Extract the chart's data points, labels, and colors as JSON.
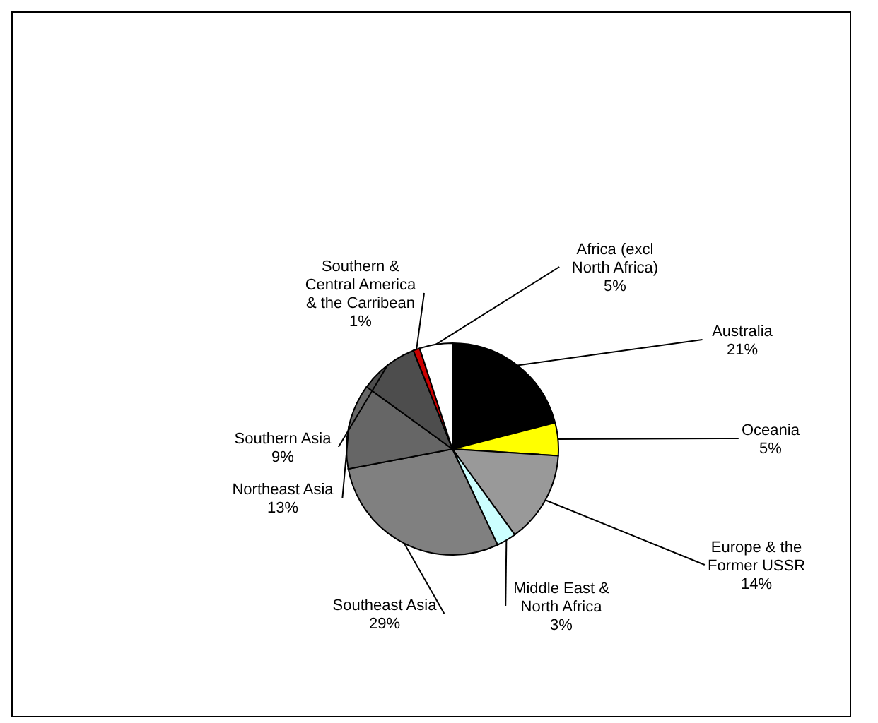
{
  "chart_data": {
    "type": "pie",
    "categories": [
      "Australia",
      "Oceania",
      "Europe & the Former USSR",
      "Middle East & North Africa",
      "Southeast Asia",
      "Northeast Asia",
      "Southern Asia",
      "Southern & Central America & the Carribean",
      "Africa (excl North Africa)"
    ],
    "values": [
      21,
      5,
      14,
      3,
      29,
      13,
      9,
      1,
      5
    ],
    "colors": [
      "#000000",
      "#ffff00",
      "#999999",
      "#ccffff",
      "#808080",
      "#666666",
      "#4d4d4d",
      "#cc0000",
      "#ffffff"
    ],
    "value_labels": [
      "21%",
      "5%",
      "14%",
      "3%",
      "29%",
      "13%",
      "9%",
      "1%",
      "5%"
    ]
  }
}
